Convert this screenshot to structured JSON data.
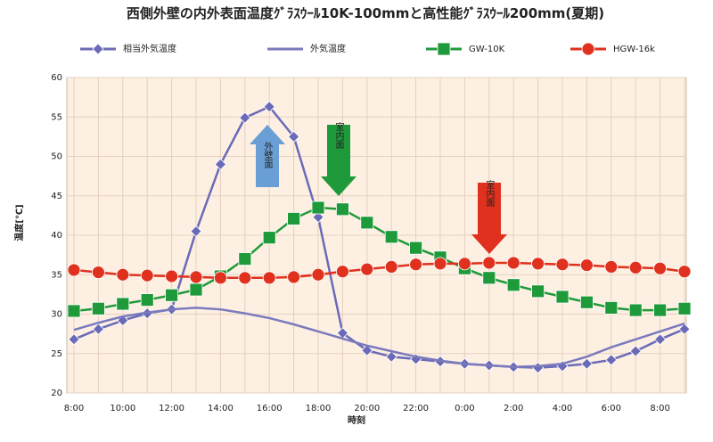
{
  "chart_data": {
    "type": "line",
    "title": "西側外壁の内外表面温度ｸﾞﾗｽｳｰﾙ10K-100mmと高性能ｸﾞﾗｽｳｰﾙ200mm(夏期)",
    "x_label": "時刻",
    "y_label": "温度[℃]",
    "categories": [
      "8:00",
      null,
      "10:00",
      null,
      "12:00",
      null,
      "14:00",
      null,
      "16:00",
      null,
      "18:00",
      null,
      "20:00",
      null,
      "22:00",
      null,
      "0:00",
      null,
      "2:00",
      null,
      "4:00",
      null,
      "6:00",
      null,
      "8:00",
      null
    ],
    "ylim": [
      20,
      60
    ],
    "yticks": [
      20,
      25,
      30,
      35,
      40,
      45,
      50,
      55,
      60
    ],
    "grid": true,
    "series": [
      {
        "name": "相当外気温度",
        "color": "#6a6ab8",
        "marker": "diamond",
        "values": [
          26.8,
          28.1,
          29.2,
          30.1,
          30.6,
          40.5,
          49.0,
          54.9,
          56.3,
          52.5,
          42.3,
          27.6,
          25.4,
          24.6,
          24.3,
          24.0,
          23.7,
          23.5,
          23.3,
          23.2,
          23.4,
          23.7,
          24.2,
          25.3,
          26.8,
          28.1
        ]
      },
      {
        "name": "外気温度",
        "color": "#7a7abd",
        "marker": "none",
        "values": [
          28.0,
          28.9,
          29.7,
          30.2,
          30.6,
          30.8,
          30.6,
          30.1,
          29.5,
          28.7,
          27.8,
          26.9,
          26.0,
          25.3,
          24.6,
          24.1,
          23.7,
          23.5,
          23.3,
          23.4,
          23.7,
          24.6,
          25.8,
          26.8,
          27.8,
          28.8
        ]
      },
      {
        "name": "GW-10K",
        "color": "#1f9a3a",
        "marker": "square",
        "values": [
          30.4,
          30.7,
          31.3,
          31.8,
          32.4,
          33.1,
          34.8,
          37.0,
          39.7,
          42.1,
          43.5,
          43.3,
          41.6,
          39.8,
          38.4,
          37.2,
          35.8,
          34.6,
          33.7,
          32.9,
          32.2,
          31.5,
          30.8,
          30.5,
          30.5,
          30.7
        ]
      },
      {
        "name": "HGW-16k",
        "color": "#e0301e",
        "marker": "circle",
        "values": [
          35.6,
          35.3,
          35.0,
          34.9,
          34.8,
          34.7,
          34.6,
          34.6,
          34.6,
          34.7,
          35.0,
          35.4,
          35.7,
          36.0,
          36.3,
          36.4,
          36.4,
          36.5,
          36.5,
          36.4,
          36.3,
          36.2,
          36.0,
          35.9,
          35.8,
          35.4
        ]
      }
    ],
    "annotations": [
      {
        "text": "外壁面",
        "color": "#6a9fd6",
        "direction": "up"
      },
      {
        "text": "室内面",
        "color": "#1f9a3a",
        "direction": "down"
      },
      {
        "text": "室内面",
        "color": "#e0301e",
        "direction": "down"
      }
    ]
  }
}
